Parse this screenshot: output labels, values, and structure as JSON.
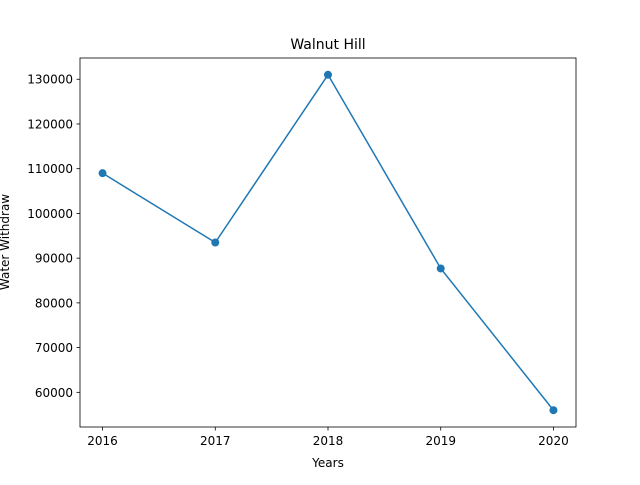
{
  "chart_data": {
    "type": "line",
    "title": "Walnut Hill",
    "xlabel": "Years",
    "ylabel": "Water Withdraw",
    "x": [
      "2016",
      "2017",
      "2018",
      "2019",
      "2020"
    ],
    "series": [
      {
        "values": [
          109000,
          93500,
          131000,
          87700,
          56000
        ]
      }
    ],
    "xlim": [
      2015.8,
      2020.2
    ],
    "ylim": [
      52250,
      134750
    ],
    "yticks": [
      60000,
      70000,
      80000,
      90000,
      100000,
      110000,
      120000,
      130000
    ],
    "ytick_labels": [
      "60000",
      "70000",
      "80000",
      "90000",
      "100000",
      "110000",
      "120000",
      "130000"
    ],
    "grid": false,
    "legend": "none",
    "line_color": "#1f77b4",
    "marker": "circle"
  }
}
